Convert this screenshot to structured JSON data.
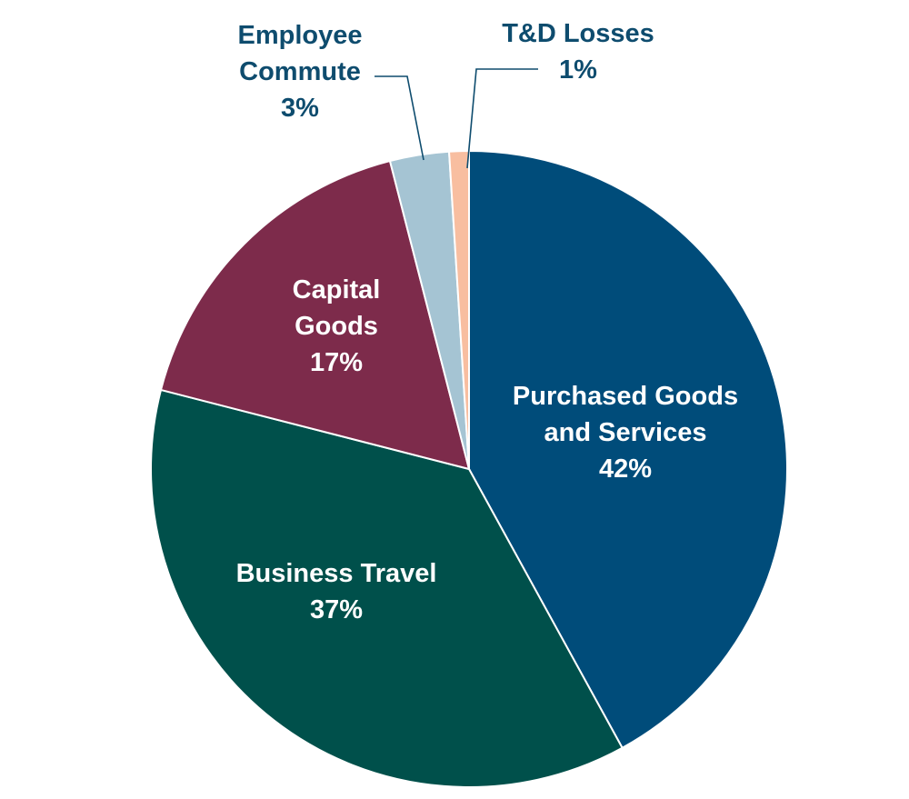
{
  "chart_data": {
    "type": "pie",
    "title": "",
    "slices": [
      {
        "name": "Purchased Goods and Services",
        "value": 42,
        "label_lines": [
          "Purchased Goods",
          "and Services"
        ],
        "value_label": "42%",
        "color": "#004c7a",
        "label_placement": "inside"
      },
      {
        "name": "Business Travel",
        "value": 37,
        "label_lines": [
          "Business Travel"
        ],
        "value_label": "37%",
        "color": "#00504b",
        "label_placement": "inside"
      },
      {
        "name": "Capital Goods",
        "value": 17,
        "label_lines": [
          "Capital",
          "Goods"
        ],
        "value_label": "17%",
        "color": "#7d2b4b",
        "label_placement": "inside"
      },
      {
        "name": "Employee Commute",
        "value": 3,
        "label_lines": [
          "Employee",
          "Commute"
        ],
        "value_label": "3%",
        "color": "#a5c4d3",
        "label_placement": "outside"
      },
      {
        "name": "T&D Losses",
        "value": 1,
        "label_lines": [
          "T&D Losses"
        ],
        "value_label": "1%",
        "color": "#f8bea0",
        "label_placement": "outside"
      }
    ],
    "start": "12 o'clock",
    "direction": "clockwise",
    "legend": "none"
  }
}
